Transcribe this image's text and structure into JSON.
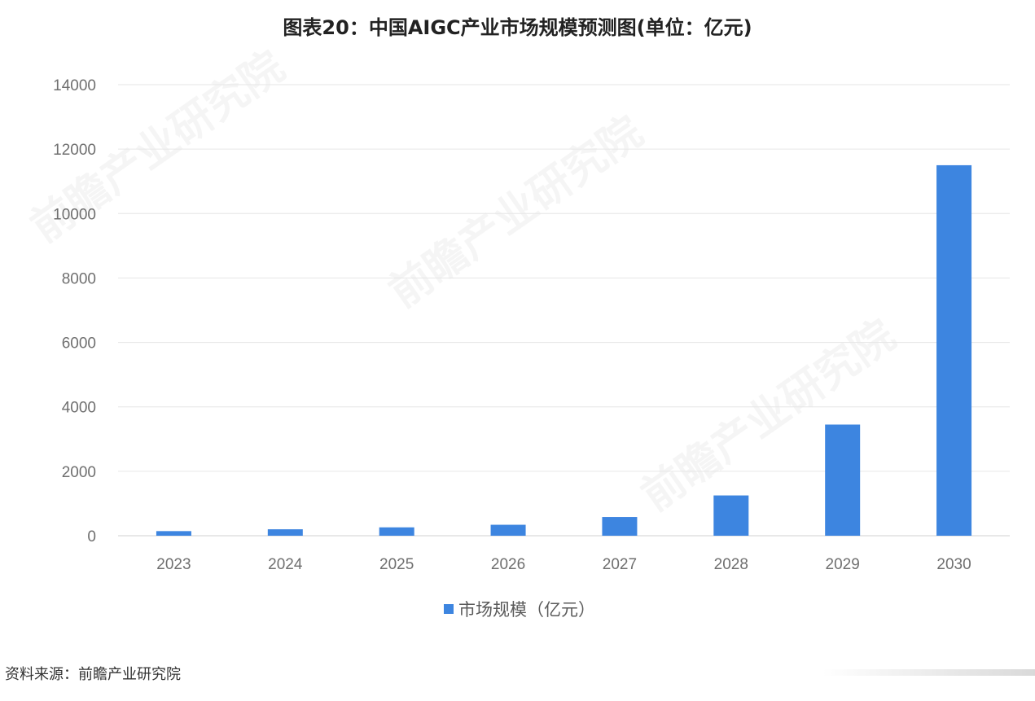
{
  "chart_data": {
    "type": "bar",
    "title": "图表20：中国AIGC产业市场规模预测图(单位：亿元)",
    "categories": [
      "2023",
      "2024",
      "2025",
      "2026",
      "2027",
      "2028",
      "2029",
      "2030"
    ],
    "series": [
      {
        "name": "市场规模（亿元）",
        "values": [
          143,
          200,
          260,
          340,
          580,
          1250,
          3450,
          11500
        ]
      }
    ],
    "y_ticks": [
      "0",
      "2000",
      "4000",
      "6000",
      "8000",
      "10000",
      "12000",
      "14000"
    ],
    "ylim": [
      0,
      14000
    ],
    "grid": true,
    "legend_position": "bottom",
    "bar_color": "#3d85e0"
  },
  "source_text": "资料来源：前瞻产业研究院",
  "watermark_text": "前瞻产业研究院"
}
